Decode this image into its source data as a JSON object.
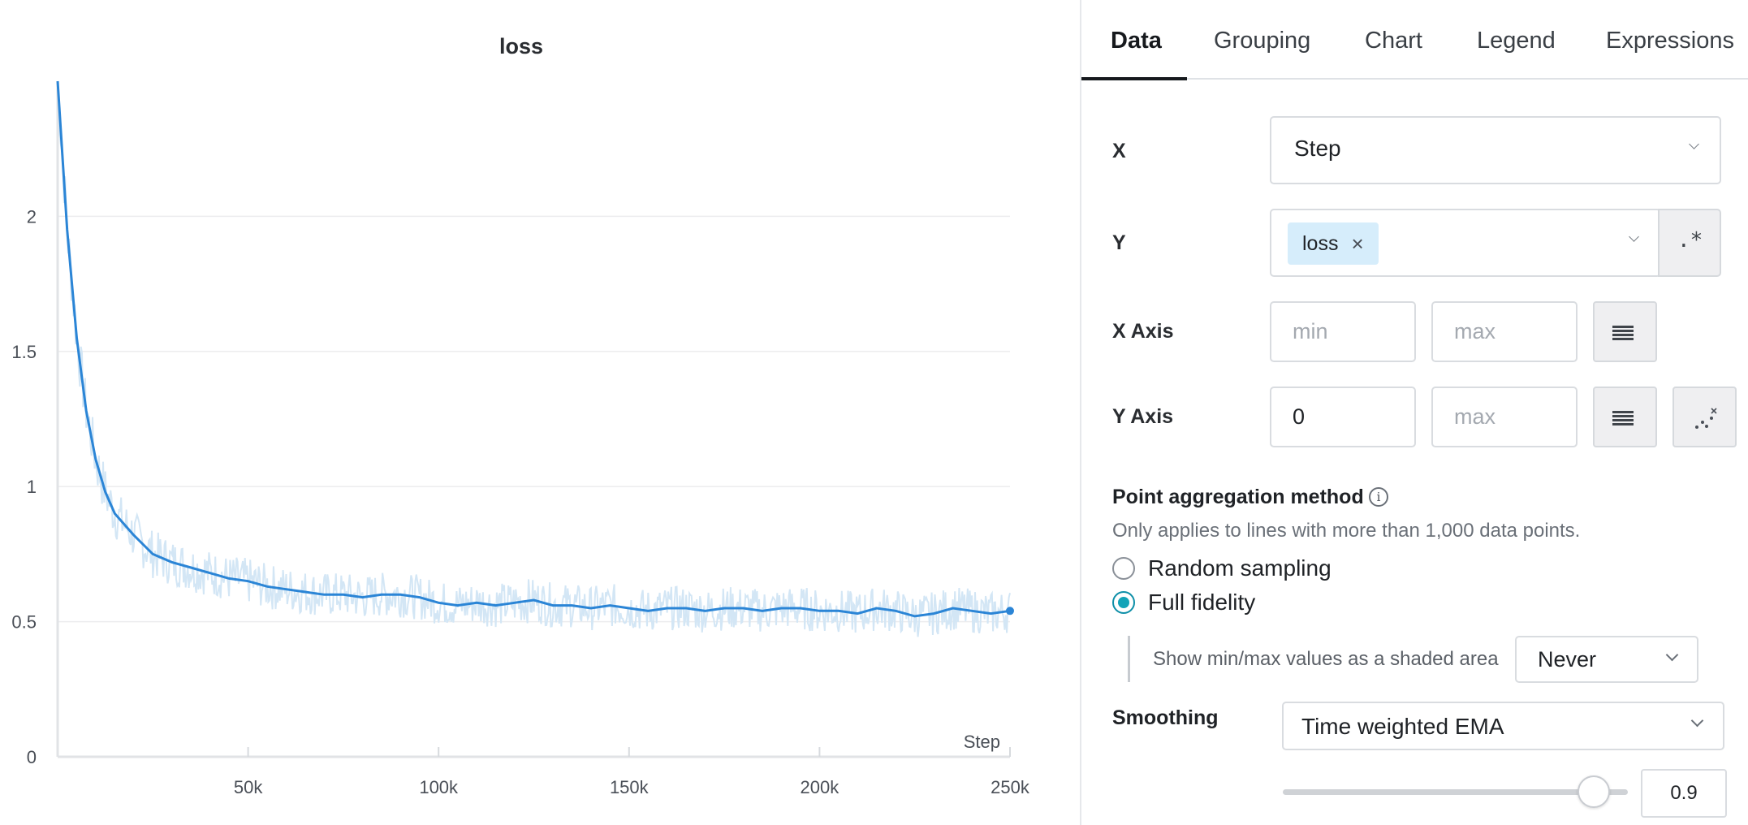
{
  "chart_data": {
    "type": "line",
    "title": "loss",
    "xlabel": "Step",
    "ylabel": "",
    "xlim": [
      0,
      250000
    ],
    "ylim": [
      0,
      2.5
    ],
    "x_ticks": [
      "50k",
      "100k",
      "150k",
      "200k",
      "250k"
    ],
    "x_tick_values": [
      50000,
      100000,
      150000,
      200000,
      250000
    ],
    "y_ticks": [
      "0",
      "0.5",
      "1",
      "1.5",
      "2"
    ],
    "y_tick_values": [
      0,
      0.5,
      1,
      1.5,
      2
    ],
    "grid": true,
    "raw_color": "#d3e6f5",
    "line_color": "#2b85d6",
    "series": [
      {
        "x": [
          0,
          2500,
          5000,
          7500,
          10000,
          12500,
          15000,
          20000,
          25000,
          30000,
          35000,
          40000,
          45000,
          50000,
          55000,
          60000,
          65000,
          70000,
          75000,
          80000,
          85000,
          90000,
          95000,
          100000,
          105000,
          110000,
          115000,
          120000,
          125000,
          130000,
          135000,
          140000,
          145000,
          150000,
          155000,
          160000,
          165000,
          170000,
          175000,
          180000,
          185000,
          190000,
          195000,
          200000,
          205000,
          210000,
          215000,
          220000,
          225000,
          230000,
          235000,
          240000,
          245000,
          250000
        ],
        "values": [
          2.5,
          1.95,
          1.55,
          1.28,
          1.1,
          0.98,
          0.9,
          0.82,
          0.75,
          0.72,
          0.7,
          0.68,
          0.66,
          0.65,
          0.63,
          0.62,
          0.61,
          0.6,
          0.6,
          0.59,
          0.6,
          0.6,
          0.59,
          0.57,
          0.56,
          0.57,
          0.56,
          0.57,
          0.58,
          0.56,
          0.56,
          0.55,
          0.56,
          0.55,
          0.54,
          0.55,
          0.55,
          0.54,
          0.55,
          0.55,
          0.54,
          0.55,
          0.55,
          0.54,
          0.54,
          0.53,
          0.55,
          0.54,
          0.52,
          0.53,
          0.55,
          0.54,
          0.53,
          0.54
        ]
      }
    ]
  },
  "tabs": [
    {
      "label": "Data"
    },
    {
      "label": "Grouping"
    },
    {
      "label": "Chart"
    },
    {
      "label": "Legend"
    },
    {
      "label": "Expressions"
    }
  ],
  "rows": {
    "x_label": "X",
    "x_value": "Step",
    "y_label": "Y",
    "y_chip": "loss",
    "y_chip_remove": "×",
    "regex_label": ".*",
    "x_axis_label": "X Axis",
    "x_axis_min_placeholder": "min",
    "x_axis_max_placeholder": "max",
    "y_axis_label": "Y Axis",
    "y_axis_min_value": "0",
    "y_axis_max_placeholder": "max"
  },
  "aggregation": {
    "title": "Point aggregation method",
    "info": "i",
    "hint": "Only applies to lines with more than 1,000 data points.",
    "option_random": "Random sampling",
    "option_full": "Full fidelity",
    "selected": "Full fidelity",
    "shaded_label": "Show min/max values as a shaded area",
    "shaded_value": "Never"
  },
  "smoothing": {
    "label": "Smoothing",
    "method": "Time weighted EMA",
    "value": "0.9",
    "slider_fraction": 0.9
  }
}
